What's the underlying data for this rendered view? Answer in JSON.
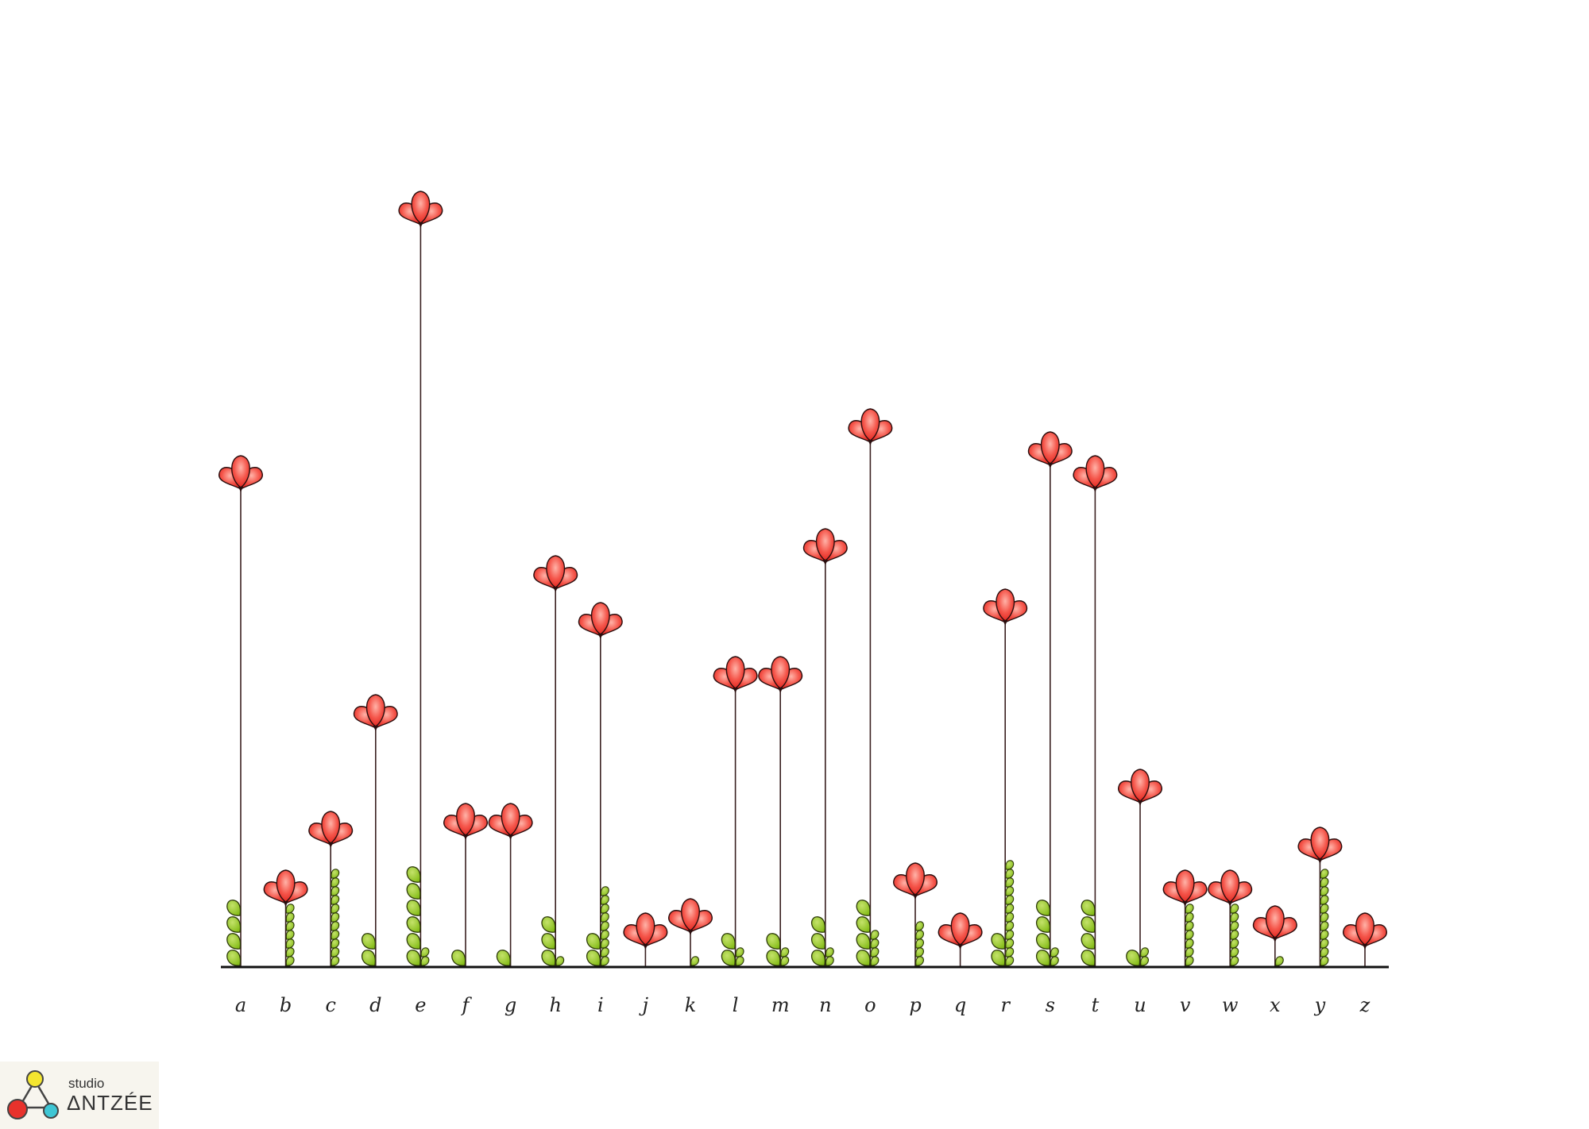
{
  "chart_data": {
    "type": "bar",
    "title": "",
    "xlabel": "",
    "ylabel": "",
    "categories": [
      "a",
      "b",
      "c",
      "d",
      "e",
      "f",
      "g",
      "h",
      "i",
      "j",
      "k",
      "l",
      "m",
      "n",
      "o",
      "p",
      "q",
      "r",
      "s",
      "t",
      "u",
      "v",
      "w",
      "x",
      "y",
      "z"
    ],
    "values": [
      606,
      84,
      158,
      305,
      939,
      168,
      168,
      480,
      421,
      30,
      48,
      353,
      353,
      514,
      665,
      93,
      30,
      438,
      636,
      606,
      211,
      84,
      84,
      39,
      138,
      30
    ],
    "leaves": [
      {
        "big": 4,
        "small": 0
      },
      {
        "big": 0,
        "small": 7
      },
      {
        "big": 0,
        "small": 11
      },
      {
        "big": 2,
        "small": 0
      },
      {
        "big": 6,
        "small": 2
      },
      {
        "big": 1,
        "small": 0
      },
      {
        "big": 1,
        "small": 0
      },
      {
        "big": 3,
        "small": 1
      },
      {
        "big": 2,
        "small": 9
      },
      {
        "big": 0,
        "small": 0
      },
      {
        "big": 0,
        "small": 1
      },
      {
        "big": 2,
        "small": 2
      },
      {
        "big": 2,
        "small": 2
      },
      {
        "big": 3,
        "small": 2
      },
      {
        "big": 4,
        "small": 4
      },
      {
        "big": 0,
        "small": 5
      },
      {
        "big": 0,
        "small": 0
      },
      {
        "big": 2,
        "small": 12
      },
      {
        "big": 4,
        "small": 2
      },
      {
        "big": 4,
        "small": 0
      },
      {
        "big": 1,
        "small": 2
      },
      {
        "big": 0,
        "small": 7
      },
      {
        "big": 0,
        "small": 7
      },
      {
        "big": 0,
        "small": 1
      },
      {
        "big": 0,
        "small": 11
      },
      {
        "big": 0,
        "small": 0
      }
    ],
    "ylim": [
      0,
      960
    ],
    "grid": false,
    "legend": "none",
    "colors": {
      "flower": "#f2443e",
      "flower_light": "#ff9a90",
      "leaf": "#8cc21f",
      "stem": "#3a2020",
      "axis": "#111111"
    }
  },
  "brand": {
    "studio": "studio",
    "name": "ΔNTZÉE",
    "colors": {
      "yellow": "#f3e530",
      "red": "#e8322c",
      "cyan": "#3ec6d4"
    }
  }
}
